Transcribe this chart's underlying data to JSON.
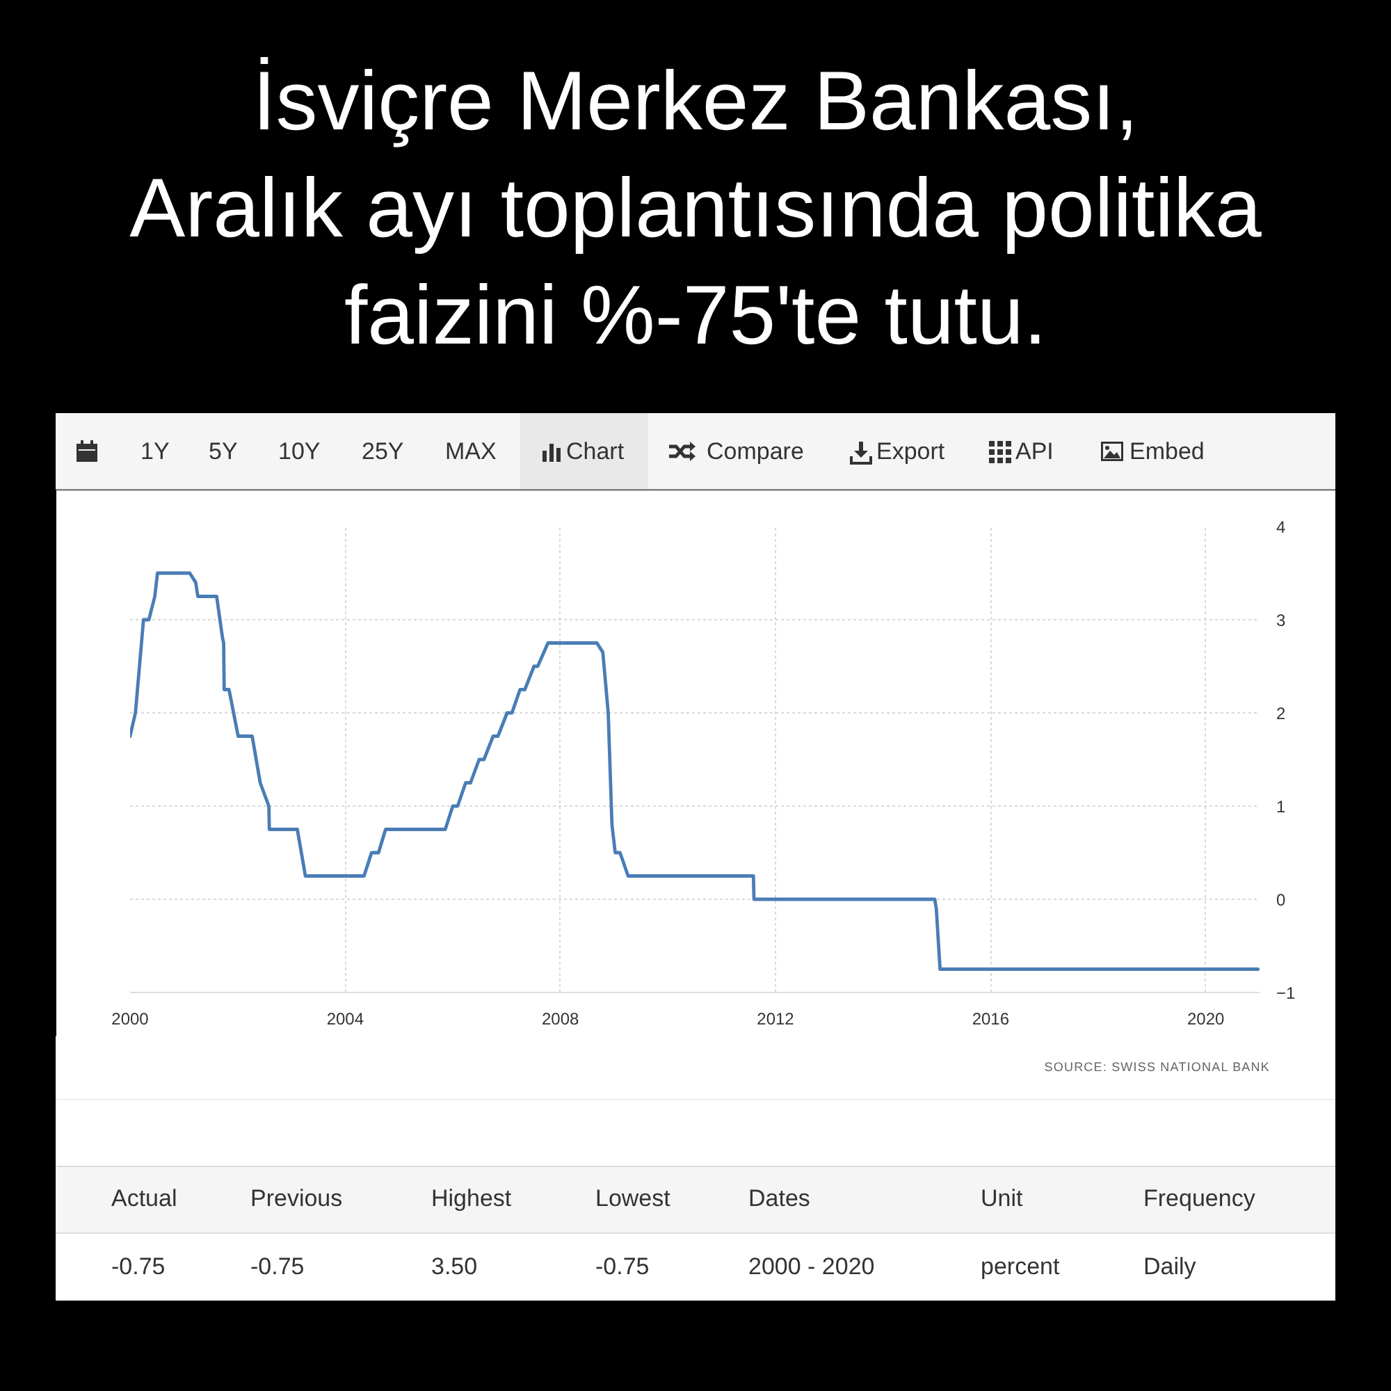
{
  "chart_data": {
    "type": "line",
    "title": "İsviçre Merkez Bankası,\nAralık ayı toplantısında politika\nfaizini %-75'te tutu.",
    "x": [
      2000.0,
      2000.1,
      2000.25,
      2000.35,
      2000.46,
      2000.51,
      2001.11,
      2001.22,
      2001.26,
      2001.61,
      2001.72,
      2001.74,
      2001.75,
      2001.84,
      2002.01,
      2002.27,
      2002.42,
      2002.58,
      2002.59,
      2003.11,
      2003.26,
      2004.35,
      2004.49,
      2004.62,
      2004.75,
      2005.86,
      2006.0,
      2006.09,
      2006.24,
      2006.33,
      2006.49,
      2006.58,
      2006.75,
      2006.84,
      2007.01,
      2007.1,
      2007.25,
      2007.34,
      2007.51,
      2007.58,
      2007.77,
      2008.68,
      2008.79,
      2008.89,
      2008.96,
      2009.02,
      2009.11,
      2009.26,
      2011.59,
      2011.6,
      2014.96,
      2014.99,
      2015.06,
      2020.97
    ],
    "series": [
      {
        "color": "#4a7db5",
        "values": [
          1.75,
          2.0,
          3.0,
          3.0,
          3.25,
          3.5,
          3.5,
          3.4,
          3.25,
          3.25,
          2.8,
          2.75,
          2.25,
          2.25,
          1.75,
          1.75,
          1.25,
          1.0,
          0.75,
          0.75,
          0.25,
          0.25,
          0.5,
          0.5,
          0.75,
          0.75,
          1.0,
          1.0,
          1.25,
          1.25,
          1.5,
          1.5,
          1.75,
          1.75,
          2.0,
          2.0,
          2.25,
          2.25,
          2.5,
          2.5,
          2.75,
          2.75,
          2.65,
          2.0,
          0.8,
          0.5,
          0.5,
          0.25,
          0.25,
          0.0,
          0.0,
          -0.1,
          -0.75,
          -0.75
        ]
      }
    ],
    "xlim": [
      2000,
      2021
    ],
    "xticks": [
      2000,
      2004,
      2008,
      2012,
      2016,
      2020
    ],
    "ylim": [
      -1,
      4
    ],
    "yticks": [
      -1,
      0,
      1,
      2,
      3,
      4
    ],
    "grid": true,
    "annotations": [
      "1Y",
      "5Y",
      "10Y",
      "25Y",
      "MAX",
      "Chart",
      "Compare",
      "Export",
      "API",
      "Embed",
      "SOURCE: SWISS NATIONAL BANK",
      "Actual",
      "Previous",
      "Highest",
      "Lowest",
      "Dates",
      "Unit",
      "Frequency",
      "-0.75",
      "-0.75",
      "3.50",
      "-0.75",
      "2000 - 2020",
      "percent",
      "Daily"
    ]
  }
}
